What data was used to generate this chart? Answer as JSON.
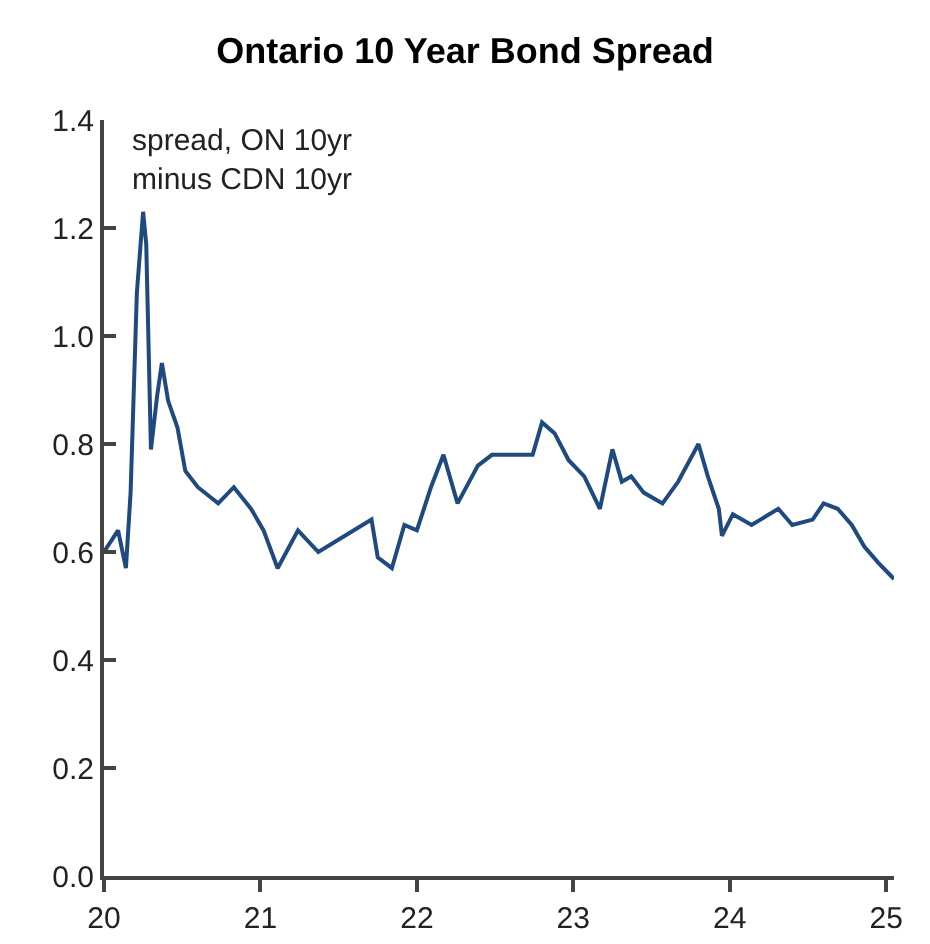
{
  "chart_data": {
    "type": "line",
    "title": "Ontario 10 Year Bond Spread",
    "annotations": [
      "spread, ON 10yr\nminus CDN 10yr"
    ],
    "series": [
      {
        "color": "#1f4a7f",
        "x": [
          20.0,
          20.09,
          20.14,
          20.17,
          20.21,
          20.25,
          20.27,
          20.3,
          20.34,
          20.37,
          20.41,
          20.47,
          20.52,
          20.6,
          20.73,
          20.83,
          20.94,
          21.02,
          21.11,
          21.24,
          21.37,
          21.54,
          21.71,
          21.75,
          21.84,
          21.92,
          22.0,
          22.09,
          22.17,
          22.26,
          22.39,
          22.48,
          22.61,
          22.74,
          22.8,
          22.88,
          22.97,
          23.07,
          23.17,
          23.25,
          23.31,
          23.37,
          23.45,
          23.57,
          23.67,
          23.8,
          23.86,
          23.93,
          23.95,
          24.02,
          24.14,
          24.31,
          24.4,
          24.53,
          24.6,
          24.69,
          24.78,
          24.86,
          24.95,
          25.05
        ],
        "values": [
          0.6,
          0.64,
          0.57,
          0.71,
          1.08,
          1.23,
          1.17,
          0.79,
          0.89,
          0.95,
          0.88,
          0.83,
          0.75,
          0.72,
          0.69,
          0.72,
          0.68,
          0.64,
          0.57,
          0.64,
          0.6,
          0.63,
          0.66,
          0.59,
          0.57,
          0.65,
          0.64,
          0.72,
          0.78,
          0.69,
          0.76,
          0.78,
          0.78,
          0.78,
          0.84,
          0.82,
          0.77,
          0.74,
          0.68,
          0.79,
          0.73,
          0.74,
          0.71,
          0.69,
          0.73,
          0.8,
          0.74,
          0.68,
          0.63,
          0.67,
          0.65,
          0.68,
          0.65,
          0.66,
          0.69,
          0.68,
          0.65,
          0.61,
          0.58,
          0.55
        ]
      }
    ],
    "xlim": [
      20,
      25.05
    ],
    "xticks": [
      20,
      21,
      22,
      23,
      24,
      25
    ],
    "ylim": [
      0,
      1.4
    ],
    "yticks": [
      {
        "value": 0,
        "label": "0.0"
      },
      0.2,
      0.4,
      0.6,
      0.8,
      {
        "value": 1,
        "label": "1.0"
      },
      1.2,
      1.4
    ],
    "grid": false,
    "line_style": "solid",
    "marker": "none"
  }
}
